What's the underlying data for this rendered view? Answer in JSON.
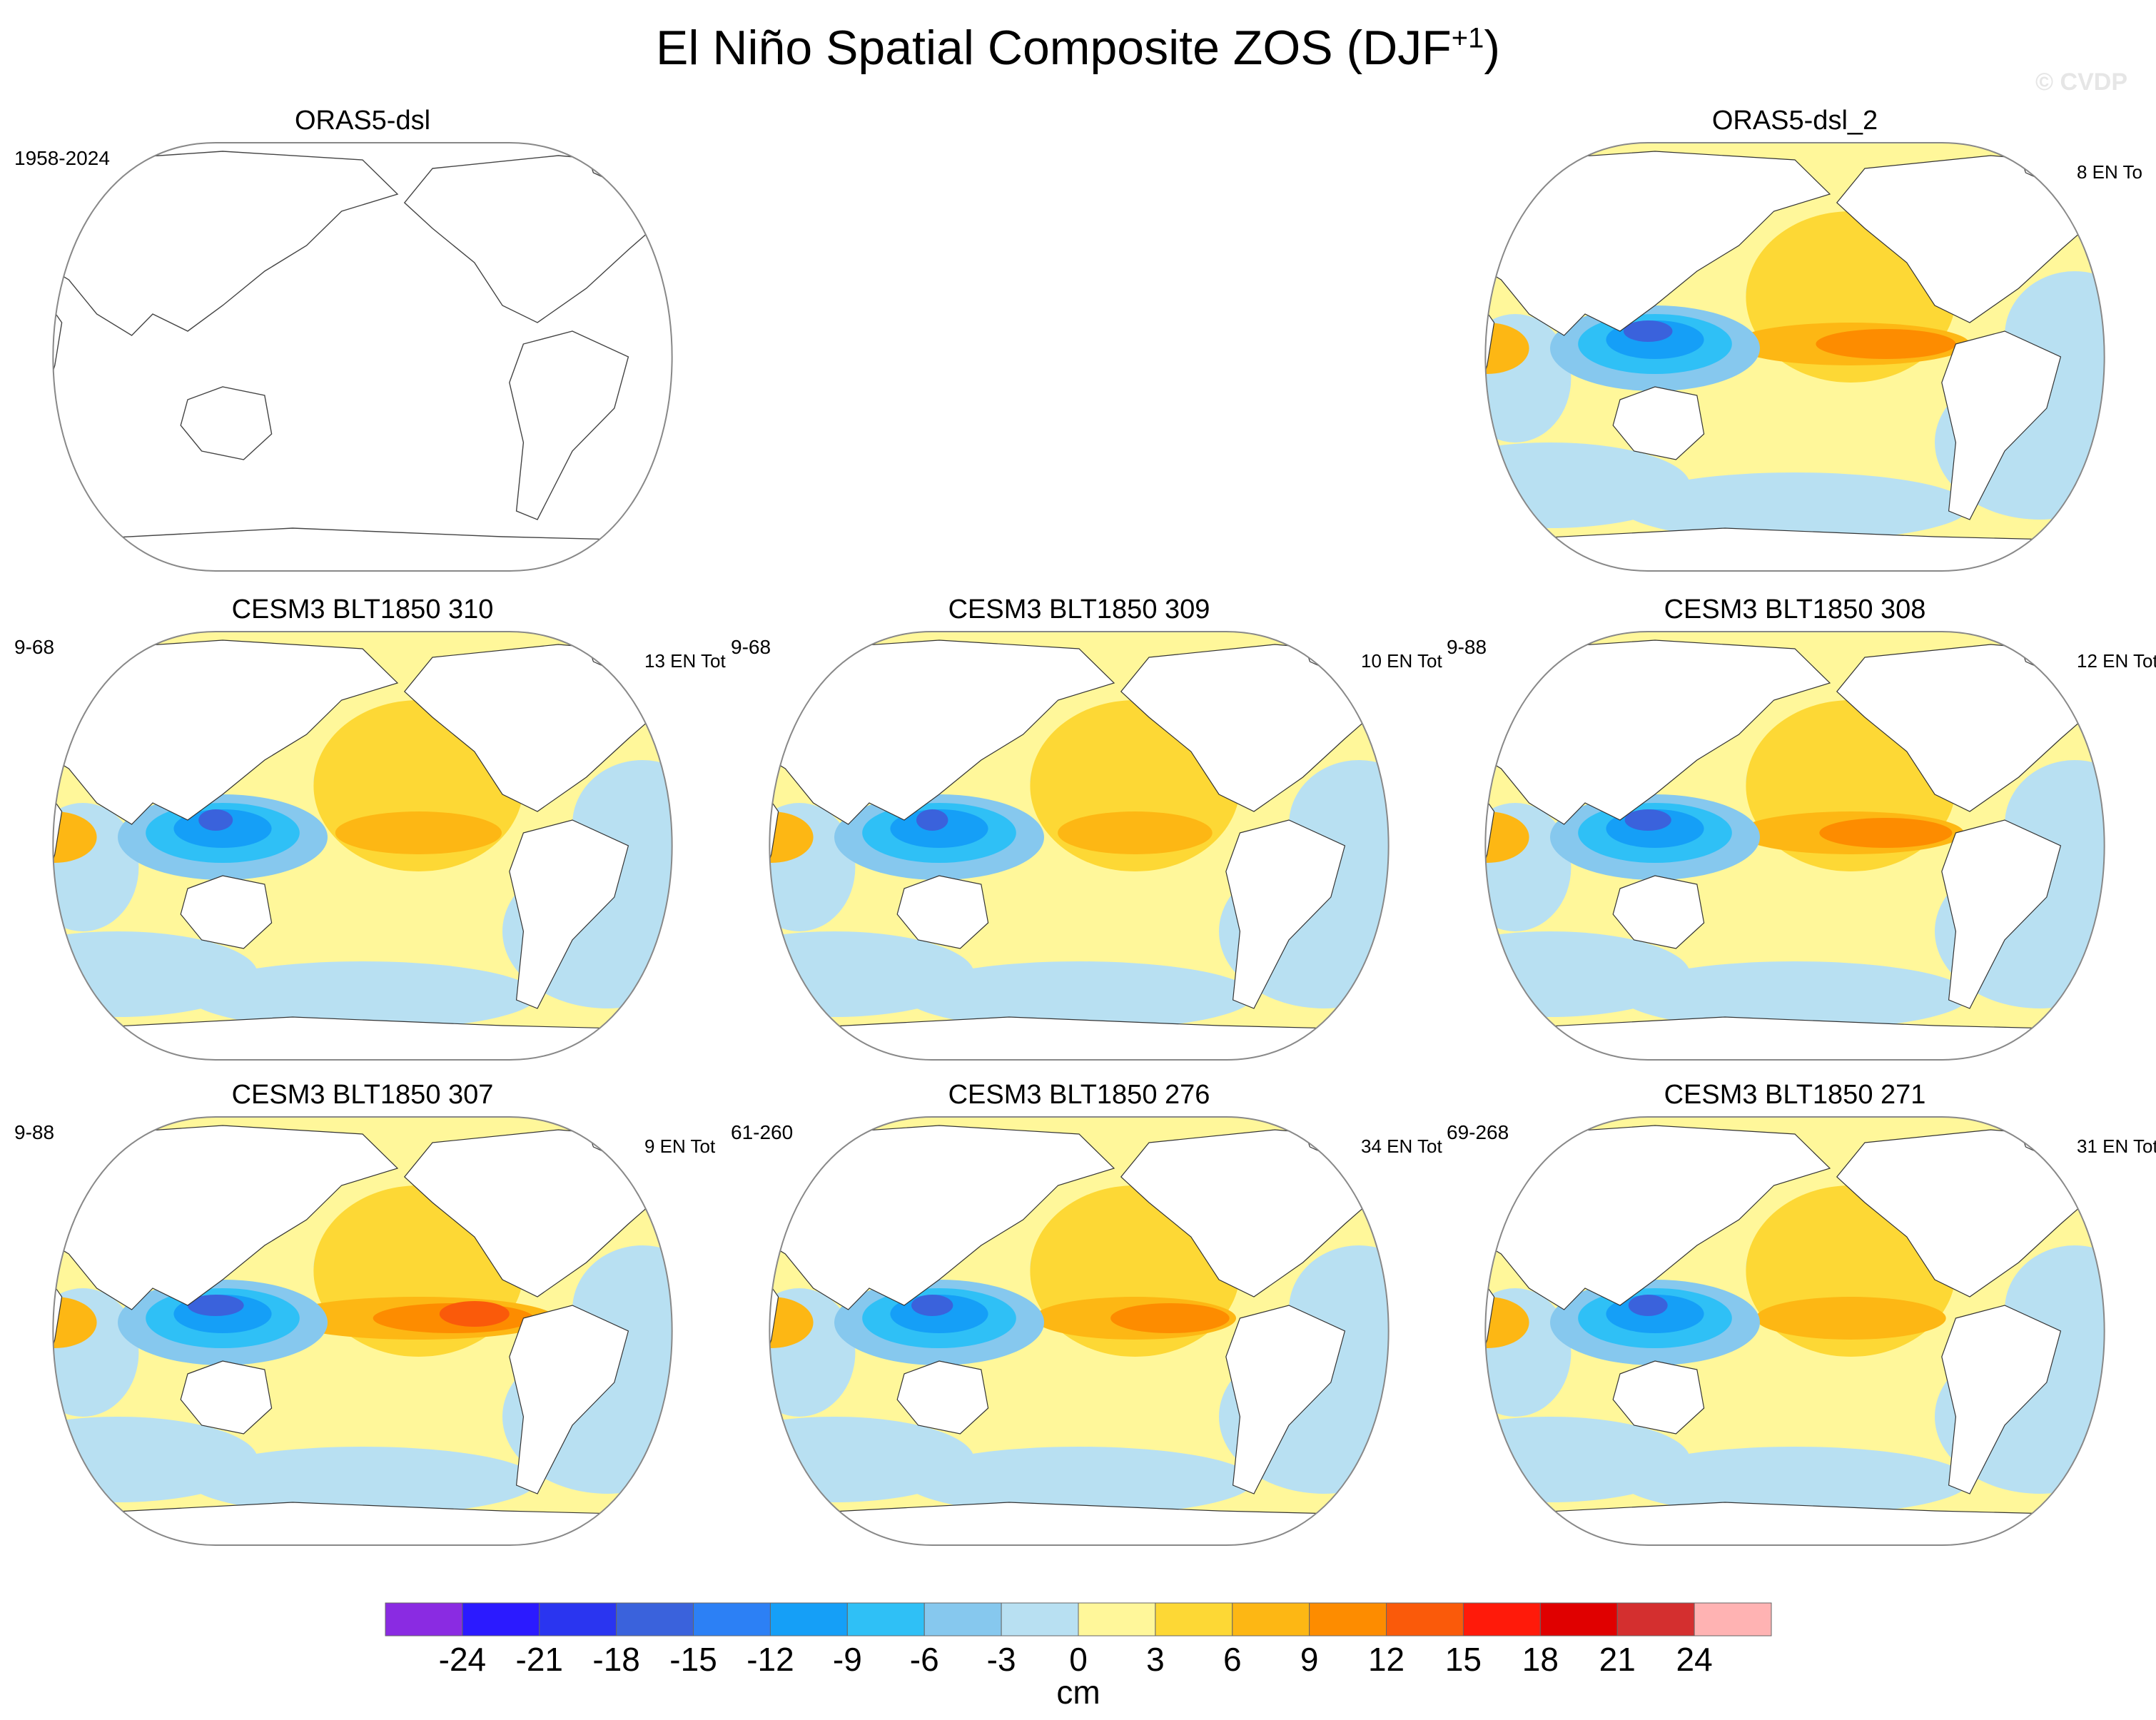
{
  "figure": {
    "title": "El Niño Spatial Composite ZOS (DJF",
    "title_sup": "+1",
    "title_close": ")",
    "watermark": "© CVDP"
  },
  "chart_data": {
    "type": "map-panels",
    "projection": "Robinson, Pacific-centered",
    "panels": [
      {
        "id": "p1",
        "title": "ORAS5-dsl",
        "left_label": "1958-2024",
        "right_label": "",
        "filled": false
      },
      {
        "id": "p2",
        "title": "ORAS5-dsl_2",
        "left_label": "",
        "right_label": "8 EN To",
        "filled": true,
        "intensity": 1.0
      },
      {
        "id": "p3",
        "title": "CESM3 BLT1850 310",
        "left_label": "9-68",
        "right_label": "13 EN Tot",
        "filled": true,
        "intensity": 0.7
      },
      {
        "id": "p4",
        "title": "CESM3 BLT1850 309",
        "left_label": "9-68",
        "right_label": "10 EN Tot",
        "filled": true,
        "intensity": 0.65
      },
      {
        "id": "p5",
        "title": "CESM3 BLT1850 308",
        "left_label": "9-88",
        "right_label": "12 EN Tot",
        "filled": true,
        "intensity": 0.95
      },
      {
        "id": "p6",
        "title": "CESM3 BLT1850 307",
        "left_label": "9-88",
        "right_label": "9 EN Tot",
        "filled": true,
        "intensity": 1.15
      },
      {
        "id": "p7",
        "title": "CESM3 BLT1850 276",
        "left_label": "61-260",
        "right_label": "34 EN Tot",
        "filled": true,
        "intensity": 0.85
      },
      {
        "id": "p8",
        "title": "CESM3 BLT1850 271",
        "left_label": "69-268",
        "right_label": "31 EN Tot",
        "filled": true,
        "intensity": 0.8
      }
    ],
    "colorbar": {
      "unit": "cm",
      "tick_labels": [
        "-24",
        "-21",
        "-18",
        "-15",
        "-12",
        "-9",
        "-6",
        "-3",
        "0",
        "3",
        "6",
        "9",
        "12",
        "15",
        "18",
        "21",
        "24"
      ],
      "colors": [
        "#8a2be2",
        "#2b1aff",
        "#2a35f0",
        "#3a62dc",
        "#2c80f5",
        "#159ff7",
        "#2fc0f6",
        "#86c8ee",
        "#b8e0f2",
        "#fff79a",
        "#fdd835",
        "#fdb714",
        "#fd8c00",
        "#fa5a0a",
        "#ff1a0a",
        "#e00000",
        "#d42f2f",
        "#ffb3b3"
      ]
    }
  }
}
